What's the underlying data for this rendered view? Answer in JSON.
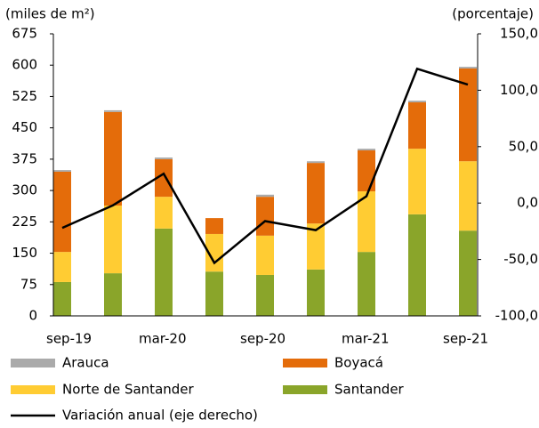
{
  "chart_data": {
    "type": "bar",
    "stacked": true,
    "y_label": "(miles de m²)",
    "y2_label": "(porcentaje)",
    "categories": [
      "sep-19",
      null,
      "mar-20",
      null,
      "sep-20",
      null,
      "mar-21",
      null,
      "sep-21"
    ],
    "ylim": [
      0,
      675
    ],
    "yticks": [
      0,
      75,
      150,
      225,
      300,
      375,
      450,
      525,
      600,
      675
    ],
    "y2lim": [
      -100,
      150
    ],
    "y2ticks": [
      {
        "value": -100,
        "label": "-100,0"
      },
      {
        "value": -50,
        "label": "-50,0"
      },
      {
        "value": 0,
        "label": "0,0"
      },
      {
        "value": 50,
        "label": "50,0"
      },
      {
        "value": 100,
        "label": "100,0"
      },
      {
        "value": 150,
        "label": "150,0"
      }
    ],
    "series": [
      {
        "name": "Santander",
        "color": "#8aa52a",
        "values": [
          81,
          102,
          209,
          106,
          98,
          111,
          153,
          243,
          204
        ]
      },
      {
        "name": "Norte de Santander",
        "color": "#ffcc33",
        "values": [
          72,
          162,
          76,
          90,
          94,
          110,
          145,
          157,
          166
        ]
      },
      {
        "name": "Boyacá",
        "color": "#e46c0a",
        "values": [
          192,
          224,
          90,
          38,
          93,
          145,
          98,
          111,
          222
        ]
      },
      {
        "name": "Arauca",
        "color": "#aaaaaa",
        "values": [
          4,
          4,
          4,
          0,
          5,
          4,
          4,
          4,
          4
        ]
      },
      {
        "name": "Variación anual (eje derecho)",
        "color": "#000000",
        "type": "line",
        "axis": "y2",
        "values": [
          -22,
          -2,
          26,
          -53,
          -16,
          -24,
          6,
          119,
          105
        ]
      }
    ],
    "legend": [
      "Arauca",
      "Boyacá",
      "Norte de Santander",
      "Santander",
      "Variación anual (eje derecho)"
    ]
  }
}
